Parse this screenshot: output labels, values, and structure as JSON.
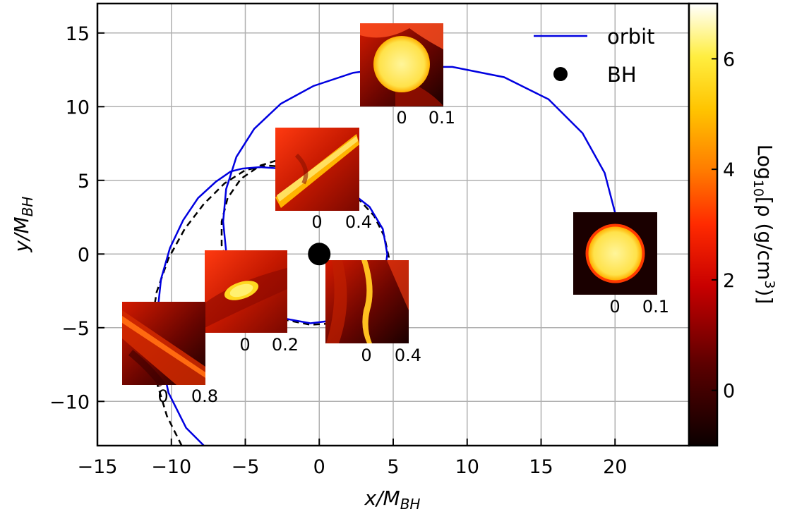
{
  "chart_data": {
    "type": "line",
    "xlabel": "x/M_BH",
    "ylabel": "y/M_BH",
    "xlim": [
      -15,
      25
    ],
    "ylim": [
      -13,
      17
    ],
    "xticks": [
      "−15",
      "−10",
      "−5",
      "0",
      "5",
      "10",
      "15",
      "20"
    ],
    "yticks": [
      "−10",
      "−5",
      "0",
      "5",
      "10",
      "15"
    ],
    "grid": true,
    "legend_position": "top-right",
    "series": [
      {
        "name": "orbit",
        "color": "#0000e0",
        "style": "solid",
        "x": [
          -7.8,
          -9.0,
          -10.2,
          -10.8,
          -10.9,
          -10.7,
          -10.1,
          -9.2,
          -8.2,
          -7.0,
          -6.0,
          -5.2,
          -4.0,
          -2.6,
          -1.2,
          0.4,
          2.0,
          3.4,
          4.3,
          4.6,
          4.4,
          3.6,
          2.4,
          1.0,
          -0.6,
          -2.2,
          -3.7,
          -4.9,
          -5.8,
          -6.3,
          -6.5,
          -6.3,
          -5.6,
          -4.4,
          -2.6,
          -0.4,
          2.3,
          5.5,
          9.0,
          12.5,
          15.5,
          17.8,
          19.3,
          20.0
        ],
        "y": [
          -13.0,
          -11.8,
          -9.4,
          -6.5,
          -3.6,
          -1.7,
          0.4,
          2.3,
          3.8,
          4.9,
          5.6,
          5.8,
          5.9,
          5.8,
          5.6,
          5.1,
          4.3,
          3.2,
          1.7,
          0.0,
          -1.6,
          -2.9,
          -3.9,
          -4.5,
          -4.7,
          -4.4,
          -3.7,
          -2.6,
          -1.3,
          0.2,
          2.2,
          4.4,
          6.6,
          8.5,
          10.2,
          11.4,
          12.3,
          12.7,
          12.7,
          12.0,
          10.5,
          8.2,
          5.5,
          2.8
        ]
      },
      {
        "name": "",
        "color": "#000000",
        "style": "dashed",
        "x": [
          -9.3,
          -10.3,
          -11.2,
          -11.4,
          -11.0,
          -10.2,
          -9.1,
          -7.8,
          -6.4,
          -5.0,
          -3.5,
          -1.9,
          -0.3,
          1.2,
          2.6,
          3.7,
          4.4,
          4.7,
          4.6,
          4.2,
          3.4,
          2.3,
          1.0,
          -0.6,
          -2.1,
          -3.4,
          -4.6,
          -5.5,
          -6.2,
          -6.6,
          -6.6,
          -6.2,
          -5.3,
          -4.0,
          -2.4,
          -0.7,
          0.8
        ],
        "y": [
          -13.0,
          -11.0,
          -8.0,
          -5.2,
          -2.6,
          -0.3,
          1.7,
          3.4,
          4.8,
          5.7,
          6.0,
          5.9,
          5.5,
          4.8,
          3.8,
          2.6,
          1.2,
          -0.2,
          -1.6,
          -2.8,
          -3.8,
          -4.4,
          -4.7,
          -4.8,
          -4.5,
          -4.0,
          -3.2,
          -2.2,
          -0.9,
          0.6,
          2.2,
          3.8,
          5.1,
          6.0,
          6.5,
          6.3,
          5.8
        ]
      }
    ],
    "markers": [
      {
        "name": "BH",
        "x": 0,
        "y": 0,
        "color": "#000000"
      }
    ],
    "snapshots": [
      {
        "id": "s1",
        "kind": "round-star",
        "scale_labels": [
          "0",
          "0.1"
        ]
      },
      {
        "id": "s2",
        "kind": "round-star-top",
        "scale_labels": [
          "0",
          "0.1"
        ]
      },
      {
        "id": "s3",
        "kind": "stream-diag",
        "scale_labels": [
          "0",
          "0.4"
        ]
      },
      {
        "id": "s4",
        "kind": "stream-vertical",
        "scale_labels": [
          "0",
          "0.4"
        ]
      },
      {
        "id": "s5",
        "kind": "blob",
        "scale_labels": [
          "0",
          "0.2"
        ]
      },
      {
        "id": "s6",
        "kind": "wide-stream",
        "scale_labels": [
          "0",
          "0.8"
        ]
      }
    ],
    "colorbar": {
      "label": "Log₁₀[ρ (g/cm³)]",
      "range": [
        -1,
        7
      ],
      "ticks": [
        "0",
        "2",
        "4",
        "6"
      ],
      "colormap": "hot"
    }
  }
}
